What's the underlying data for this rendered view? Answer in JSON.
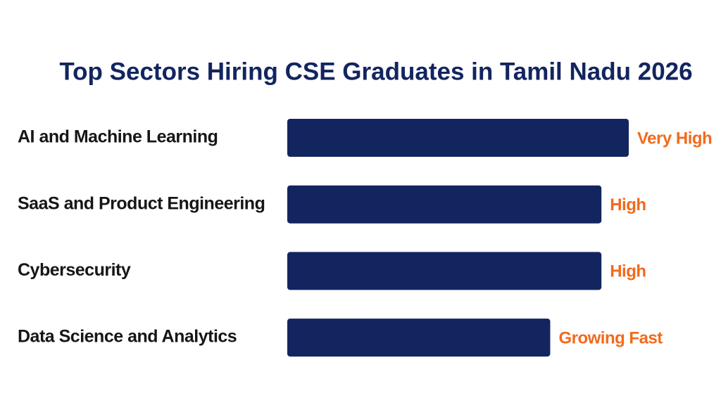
{
  "chart_data": {
    "type": "hbar",
    "title": "Top Sectors Hiring CSE Graduates in Tamil Nadu 2026",
    "categories": [
      "AI and Machine Learning",
      "SaaS and Product Engineering",
      "Cybersecurity",
      "Data Science and Analytics"
    ],
    "values": [
      100,
      92,
      92,
      77
    ],
    "value_labels": [
      "Very High",
      "High",
      "High",
      "Growing Fast"
    ],
    "color": "#13255f",
    "label_color": "#f26a1b"
  }
}
